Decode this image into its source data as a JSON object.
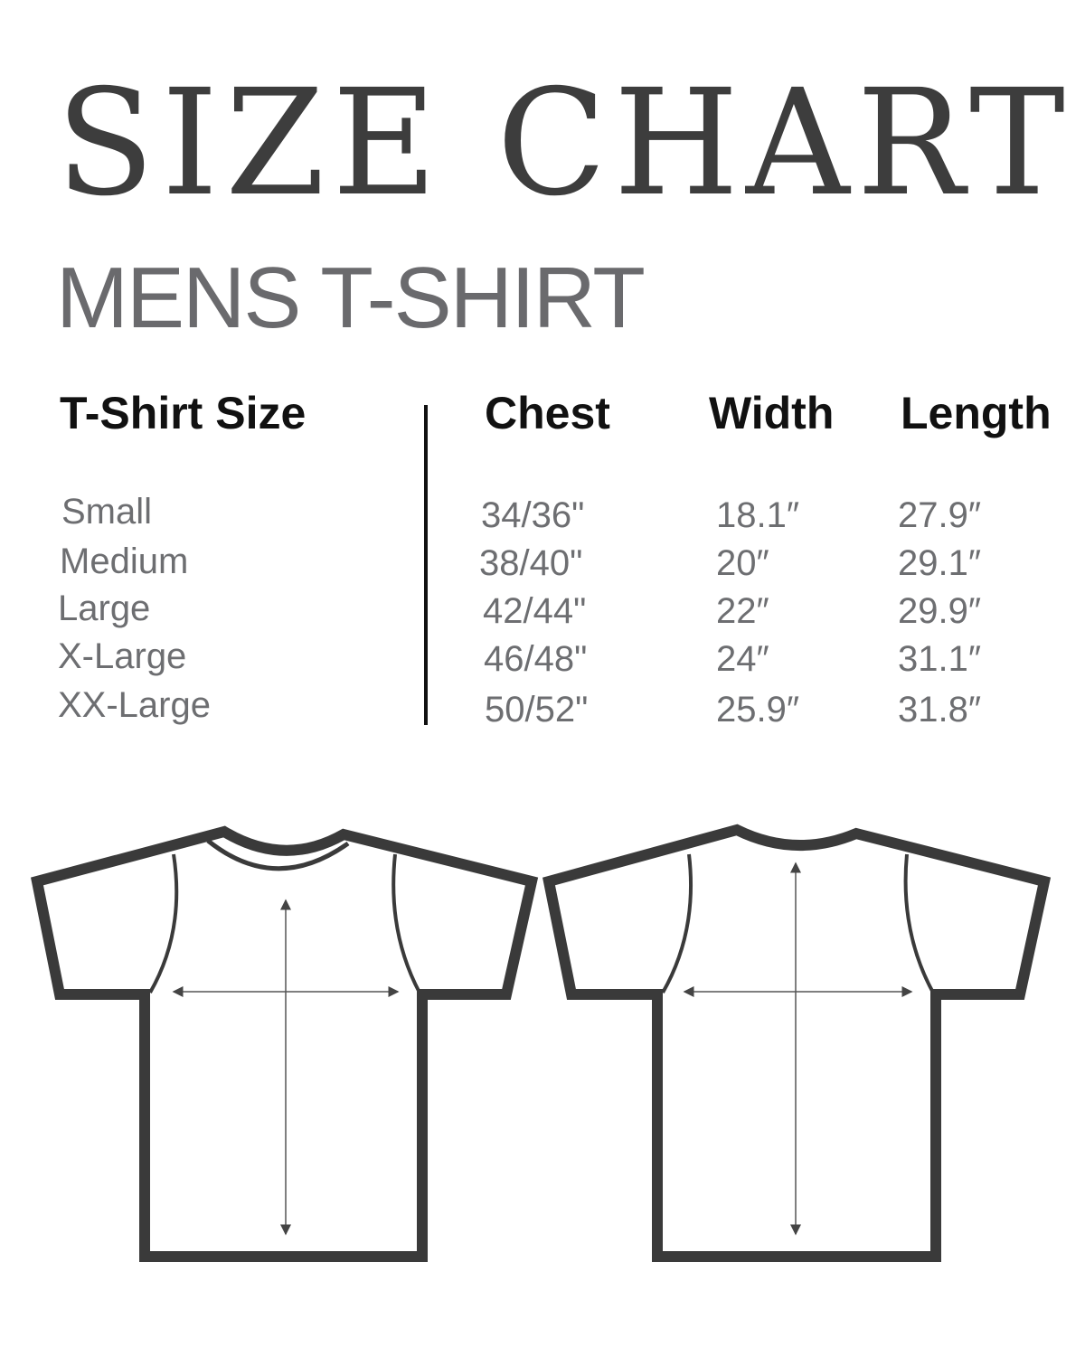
{
  "title": "SIZE CHART",
  "subtitle": "MENS T-SHIRT",
  "table": {
    "headers": [
      "T-Shirt Size",
      "Chest",
      "Width",
      "Length"
    ],
    "rows": [
      {
        "size": "Small",
        "chest": "34/36\"",
        "width": "18.1″",
        "length": "27.9″"
      },
      {
        "size": "Medium",
        "chest": "38/40\"",
        "width": "20″",
        "length": "29.1″"
      },
      {
        "size": "Large",
        "chest": "42/44\"",
        "width": "22″",
        "length": "29.9″"
      },
      {
        "size": "X-Large",
        "chest": "46/48\"",
        "width": "24″",
        "length": "31.1″"
      },
      {
        "size": "XX-Large",
        "chest": "50/52\"",
        "width": "25.9″",
        "length": "31.8″"
      }
    ]
  },
  "colors": {
    "title": "#3d3d3d",
    "subtitle": "#6a6a6d",
    "values": "#6d6e71",
    "outline": "#3a3a3a"
  },
  "diagrams": [
    "t-shirt-front",
    "t-shirt-back"
  ]
}
